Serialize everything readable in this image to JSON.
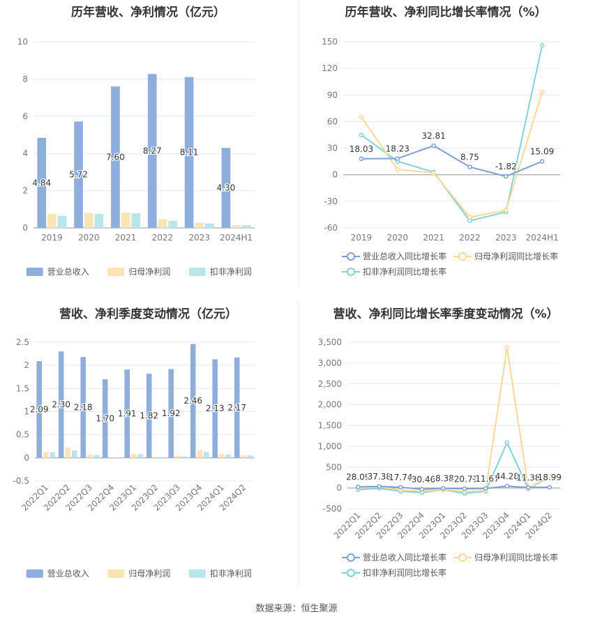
{
  "source": "数据来源：恒生聚源",
  "chart_data": [
    {
      "id": "annual_rev",
      "type": "bar",
      "title": "历年营收、净利情况（亿元）",
      "categories": [
        "2019",
        "2020",
        "2021",
        "2022",
        "2023",
        "2024H1"
      ],
      "series": [
        {
          "name": "营业总收入",
          "color": "#8eaedb",
          "values": [
            4.84,
            5.72,
            7.6,
            8.27,
            8.11,
            4.3
          ],
          "labels": [
            "4.84",
            "5.72",
            "7.60",
            "8.27",
            "8.11",
            "4.30"
          ]
        },
        {
          "name": "归母净利润",
          "color": "#fde4b4",
          "values": [
            0.75,
            0.8,
            0.82,
            0.45,
            0.28,
            0.15
          ]
        },
        {
          "name": "扣非净利润",
          "color": "#b9e6ea",
          "values": [
            0.65,
            0.75,
            0.78,
            0.38,
            0.24,
            0.14
          ]
        }
      ],
      "ylim": [
        0,
        10
      ],
      "yticks": [
        "0",
        "2",
        "4",
        "6",
        "8",
        "10"
      ],
      "legend": "bottom"
    },
    {
      "id": "annual_growth",
      "type": "line",
      "title": "历年营收、净利同比增长率情况（%）",
      "categories": [
        "2019",
        "2020",
        "2021",
        "2022",
        "2023",
        "2024H1"
      ],
      "series": [
        {
          "name": "营业总收入同比增长率",
          "color": "#7f9fd3",
          "values": [
            18.03,
            18.23,
            32.81,
            8.75,
            -1.82,
            15.09
          ],
          "labels": [
            "18.03",
            "18.23",
            "32.81",
            "8.75",
            "-1.82",
            "15.09"
          ]
        },
        {
          "name": "归母净利润同比增长率",
          "color": "#fcd898",
          "values": [
            65,
            6,
            2,
            -48,
            -40,
            93
          ]
        },
        {
          "name": "扣非净利润同比增长率",
          "color": "#7fd3d6",
          "values": [
            45,
            15,
            3,
            -52,
            -42,
            146
          ]
        }
      ],
      "ylim": [
        -60,
        150
      ],
      "yticks": [
        "-60",
        "-30",
        "0",
        "30",
        "60",
        "90",
        "120",
        "150"
      ],
      "legend": "bottom"
    },
    {
      "id": "quarterly_rev",
      "type": "bar",
      "title": "营收、净利季度变动情况（亿元）",
      "categories": [
        "2022Q1",
        "2022Q2",
        "2022Q3",
        "2022Q4",
        "2023Q1",
        "2023Q2",
        "2023Q3",
        "2023Q4",
        "2024Q1",
        "2024Q2"
      ],
      "series": [
        {
          "name": "营业总收入",
          "color": "#8eaedb",
          "values": [
            2.09,
            2.3,
            2.18,
            1.7,
            1.91,
            1.82,
            1.92,
            2.46,
            2.13,
            2.17
          ],
          "labels": [
            "2.09",
            "2.30",
            "2.18",
            "1.70",
            "1.91",
            "1.82",
            "1.92",
            "2.46",
            "2.13",
            "2.17"
          ]
        },
        {
          "name": "归母净利润",
          "color": "#fde4b4",
          "values": [
            0.13,
            0.22,
            0.07,
            0.01,
            0.08,
            0.02,
            0.04,
            0.17,
            0.08,
            0.05
          ]
        },
        {
          "name": "扣非净利润",
          "color": "#b9e6ea",
          "values": [
            0.12,
            0.16,
            0.06,
            0.01,
            0.08,
            -0.02,
            0.03,
            0.13,
            0.07,
            0.05
          ]
        }
      ],
      "ylim": [
        -0.5,
        2.5
      ],
      "yticks": [
        "-0.5",
        "0",
        "0.5",
        "1",
        "1.5",
        "2",
        "2.5"
      ],
      "legend": "bottom"
    },
    {
      "id": "quarterly_growth",
      "type": "line",
      "title": "营收、净利同比增长率季度变动情况（%）",
      "categories": [
        "2022Q1",
        "2022Q2",
        "2022Q3",
        "2022Q4",
        "2023Q1",
        "2023Q2",
        "2023Q3",
        "2023Q4",
        "2024Q1",
        "2024Q2"
      ],
      "series": [
        {
          "name": "营业总收入同比增长率",
          "color": "#7f9fd3",
          "values": [
            28.09,
            37.38,
            17.74,
            -30.46,
            -8.38,
            -20.71,
            -11.67,
            44.28,
            11.38,
            18.99
          ],
          "labels": [
            "28.09",
            "37.38",
            "17.74",
            "-30.46",
            "-8.38",
            "-20.71",
            "-11.67",
            "44.28",
            "11.38",
            "18.99"
          ]
        },
        {
          "name": "归母净利润同比增长率",
          "color": "#fcd898",
          "values": [
            -5,
            25,
            -50,
            -80,
            -40,
            -90,
            -60,
            3370,
            -10,
            280
          ]
        },
        {
          "name": "扣非净利润同比增长率",
          "color": "#7fd3d6",
          "values": [
            -40,
            -10,
            -80,
            -110,
            -45,
            -130,
            -80,
            1090,
            -20,
            260
          ]
        }
      ],
      "ylim": [
        -500,
        3500
      ],
      "yticks": [
        "-500",
        "0",
        "500",
        "1,000",
        "1,500",
        "2,000",
        "2,500",
        "3,000",
        "3,500"
      ],
      "legend": "bottom"
    }
  ]
}
